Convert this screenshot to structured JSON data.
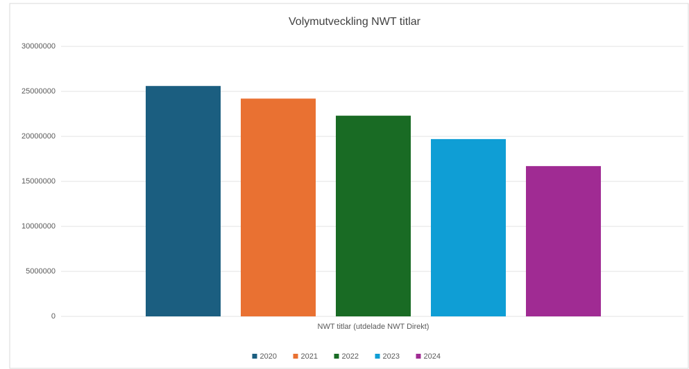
{
  "chart_data": {
    "type": "bar",
    "title": "Volymutveckling NWT titlar",
    "categories": [
      "NWT titlar (utdelade NWT Direkt)"
    ],
    "series": [
      {
        "name": "2020",
        "color": "#1b5e80",
        "values": [
          25600000
        ]
      },
      {
        "name": "2021",
        "color": "#e97132",
        "values": [
          24200000
        ]
      },
      {
        "name": "2022",
        "color": "#196b24",
        "values": [
          22300000
        ]
      },
      {
        "name": "2023",
        "color": "#0f9ed5",
        "values": [
          19700000
        ]
      },
      {
        "name": "2024",
        "color": "#a02b93",
        "values": [
          16700000
        ]
      }
    ],
    "ylim": [
      0,
      30000000
    ],
    "yticks": [
      0,
      5000000,
      10000000,
      15000000,
      20000000,
      25000000,
      30000000
    ],
    "grid": true,
    "legend": "bottom"
  }
}
